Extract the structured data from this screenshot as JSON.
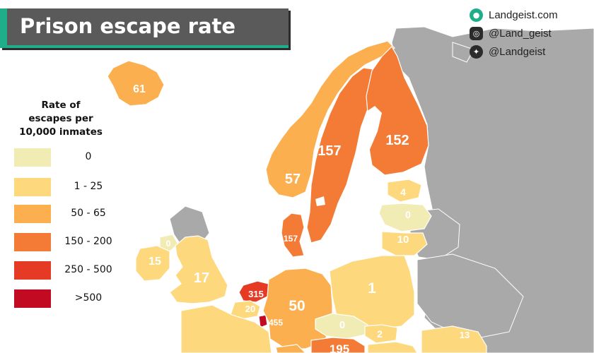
{
  "title": "Prison escape rate",
  "socials": [
    {
      "icon": "landgeist-logo-icon",
      "text": "Landgeist.com"
    },
    {
      "icon": "instagram-icon",
      "text": "@Land_geist"
    },
    {
      "icon": "twitter-icon",
      "text": "@Landgeist"
    }
  ],
  "legend": {
    "title_lines": [
      "Rate of",
      "escapes per",
      "10,000 inmates"
    ],
    "items": [
      {
        "label": "0",
        "color": "#f1ebb4"
      },
      {
        "label": "1  -  25",
        "color": "#fdd87c"
      },
      {
        "label": "50  -  65",
        "color": "#fbaf4e"
      },
      {
        "label": "150 - 200",
        "color": "#f47b36"
      },
      {
        "label": "250 - 500",
        "color": "#e53a24"
      },
      {
        "label": ">500",
        "color": "#c20a22"
      }
    ]
  },
  "colors": {
    "sea": "#ffffff",
    "non_data_land": "#a9a9a9",
    "title_bar": "#5a5a5a",
    "accent": "#1fae8a"
  },
  "country_labels": [
    {
      "country": "Iceland",
      "value": "61"
    },
    {
      "country": "Norway",
      "value": "57"
    },
    {
      "country": "Sweden",
      "value": "157"
    },
    {
      "country": "Finland",
      "value": "152"
    },
    {
      "country": "Estonia",
      "value": "4"
    },
    {
      "country": "Latvia",
      "value": "0"
    },
    {
      "country": "Lithuania",
      "value": "10"
    },
    {
      "country": "Denmark",
      "value": "157"
    },
    {
      "country": "Northern Ireland",
      "value": "0"
    },
    {
      "country": "Ireland",
      "value": "15"
    },
    {
      "country": "United Kingdom",
      "value": "17"
    },
    {
      "country": "Netherlands",
      "value": "315"
    },
    {
      "country": "Belgium",
      "value": "20"
    },
    {
      "country": "Luxembourg",
      "value": "455"
    },
    {
      "country": "Germany",
      "value": "50"
    },
    {
      "country": "Poland",
      "value": "1"
    },
    {
      "country": "Czechia",
      "value": "0"
    },
    {
      "country": "Slovakia",
      "value": "2"
    },
    {
      "country": "Austria",
      "value": "195"
    },
    {
      "country": "Romania",
      "value": "13"
    }
  ]
}
